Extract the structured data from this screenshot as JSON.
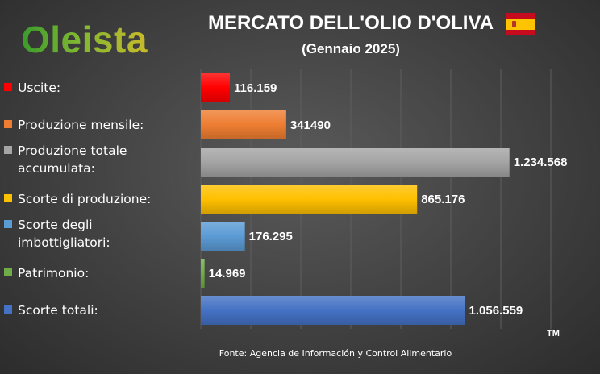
{
  "brand": {
    "logo_text": "Oleista"
  },
  "flag": {
    "icon": "spain-flag-icon",
    "colors": [
      "#c60b1e",
      "#ffc400",
      "#c60b1e"
    ]
  },
  "chart_data": {
    "type": "bar",
    "orientation": "horizontal",
    "title": "MERCATO DELL'OLIO D'OLIVA",
    "subtitle": "(Gennaio 2025)",
    "categories": [
      "Uscite:",
      "Produzione mensile:",
      "Produzione totale accumulata:",
      "Scorte di produzione:",
      "Scorte degli imbottigliatori:",
      "Patrimonio:",
      "Scorte totali:"
    ],
    "values": [
      116159,
      341490,
      1234568,
      865176,
      176295,
      14969,
      1056559
    ],
    "data_labels": [
      "116.159",
      "341490",
      "1.234.568",
      "865.176",
      "176.295",
      "14.969",
      "1.056.559"
    ],
    "colors": [
      "#ff0000",
      "#ed7d31",
      "#a5a5a5",
      "#ffc000",
      "#5b9bd5",
      "#70ad47",
      "#4472c4"
    ],
    "xlim": [
      0,
      1400000
    ],
    "grid": true,
    "legend": "left"
  },
  "footer": {
    "source": "Fonte: Agencia de Información y Control Alimentario",
    "trademark": "TM"
  }
}
